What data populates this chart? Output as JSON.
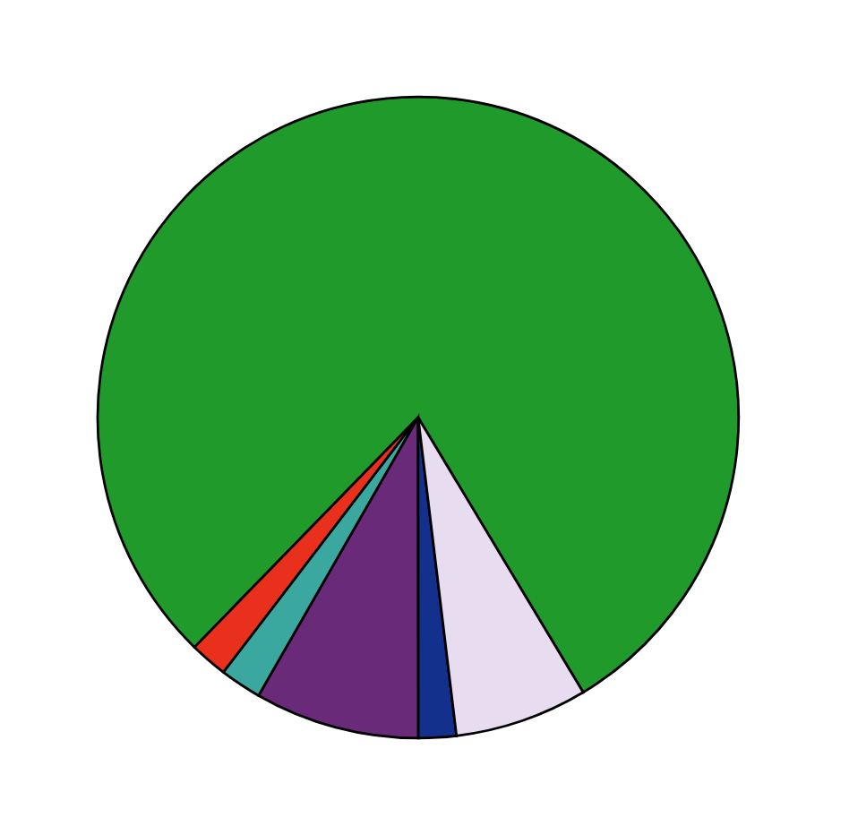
{
  "chart_data": {
    "type": "pie",
    "categories": [
      null,
      null,
      null,
      null,
      null,
      null
    ],
    "values": [
      79.1,
      1.9,
      2.1,
      8.3,
      1.9,
      6.7
    ],
    "colors": [
      "#1f9a2b",
      "#e8301c",
      "#3aa89e",
      "#6a2a7a",
      "#13318c",
      "#e8dcf0"
    ]
  }
}
